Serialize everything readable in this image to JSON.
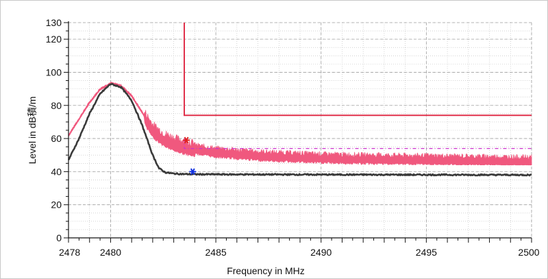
{
  "chart_data": {
    "type": "line",
    "xlabel": "Frequency in MHz",
    "ylabel": "Level in dB積/m",
    "xlim": [
      2478,
      2500
    ],
    "ylim": [
      0,
      130
    ],
    "x_ticks": [
      2478,
      2480,
      2485,
      2490,
      2495,
      2500
    ],
    "y_ticks": [
      0,
      20,
      40,
      60,
      80,
      100,
      120,
      130
    ],
    "grid": true,
    "legend": "none",
    "colors": {
      "peak_trace": "#f0587e",
      "avg_trace": "#3a3a3a",
      "limit_line": "#e0304a",
      "limit_dashed": "#cc33cc",
      "peak_marker": "#e02020",
      "avg_marker": "#1030e0",
      "grid": "#b8b8b8"
    },
    "series": [
      {
        "role": "peak",
        "x": [
          2478.0,
          2478.5,
          2479.0,
          2479.5,
          2480.0,
          2480.5,
          2481.0,
          2481.5,
          2482.0,
          2482.5,
          2483.0,
          2483.5,
          2484.0,
          2485.0,
          2486.0,
          2487.0,
          2488.0,
          2490.0,
          2492.0,
          2495.0,
          2498.0,
          2500.0
        ],
        "y": [
          62.0,
          72.0,
          82.0,
          90.0,
          93.5,
          92.0,
          86.0,
          76.0,
          66.0,
          61.0,
          58.0,
          56.0,
          54.5,
          52.5,
          51.5,
          50.5,
          50.0,
          49.0,
          48.5,
          48.0,
          47.5,
          47.0
        ]
      },
      {
        "role": "average",
        "x": [
          2478.0,
          2478.5,
          2479.0,
          2479.5,
          2480.0,
          2480.5,
          2481.0,
          2481.5,
          2482.0,
          2482.3,
          2482.6,
          2483.0,
          2483.5,
          2484.0,
          2486.0,
          2490.0,
          2495.0,
          2500.0
        ],
        "y": [
          47.0,
          60.0,
          75.0,
          87.0,
          93.0,
          91.0,
          83.0,
          68.0,
          50.0,
          42.0,
          39.5,
          38.8,
          38.5,
          38.4,
          38.3,
          38.2,
          38.1,
          38.0
        ]
      }
    ],
    "limit_lines": [
      {
        "style": "solid",
        "points": [
          [
            2483.5,
            130
          ],
          [
            2483.5,
            74
          ],
          [
            2500,
            74
          ]
        ]
      },
      {
        "style": "dashed",
        "points": [
          [
            2483.5,
            60
          ],
          [
            2483.5,
            54
          ],
          [
            2500,
            54
          ]
        ]
      }
    ],
    "markers": [
      {
        "role": "peak",
        "x": 2483.6,
        "y": 59
      },
      {
        "role": "average",
        "x": 2483.9,
        "y": 40
      }
    ]
  }
}
